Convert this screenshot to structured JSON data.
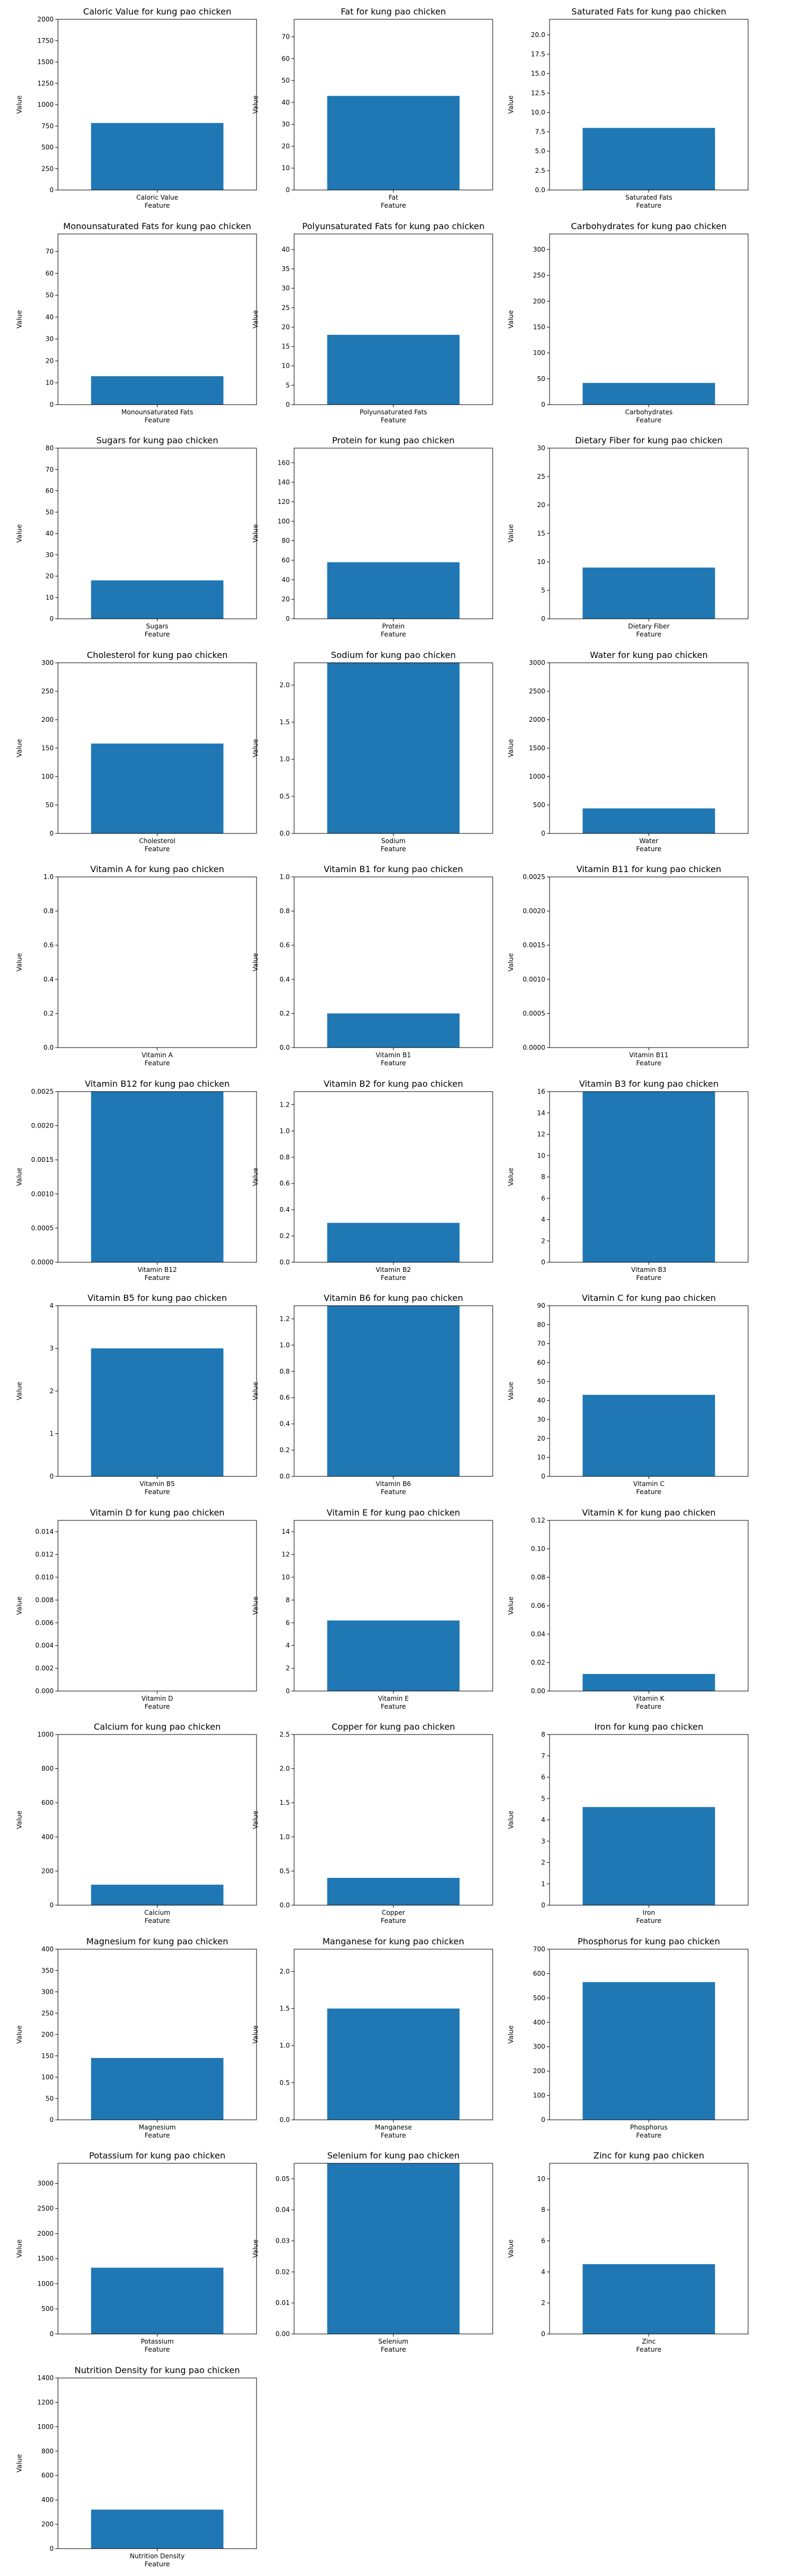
{
  "chart_data": [
    {
      "type": "bar",
      "title": "Caloric Value for kung pao chicken",
      "categories": [
        "Caloric Value"
      ],
      "values": [
        785
      ],
      "xlabel": "Feature",
      "ylabel": "Value",
      "ylim": [
        0,
        2000
      ],
      "yticks": [
        0,
        250,
        500,
        750,
        1000,
        1250,
        1500,
        1750,
        2000
      ],
      "ytick_labels": [
        "0",
        "250",
        "500",
        "750",
        "1000",
        "1250",
        "1500",
        "1750",
        "2000"
      ],
      "color": "#1f77b4"
    },
    {
      "type": "bar",
      "title": "Fat for kung pao chicken",
      "categories": [
        "Fat"
      ],
      "values": [
        43
      ],
      "xlabel": "Feature",
      "ylabel": "Value",
      "ylim": [
        0,
        78
      ],
      "yticks": [
        0,
        10,
        20,
        30,
        40,
        50,
        60,
        70
      ],
      "ytick_labels": [
        "0",
        "10",
        "20",
        "30",
        "40",
        "50",
        "60",
        "70"
      ],
      "color": "#1f77b4"
    },
    {
      "type": "bar",
      "title": "Saturated Fats for kung pao chicken",
      "categories": [
        "Saturated Fats"
      ],
      "values": [
        8
      ],
      "xlabel": "Feature",
      "ylabel": "Value",
      "ylim": [
        0,
        22
      ],
      "yticks": [
        0,
        2.5,
        5,
        7.5,
        10,
        12.5,
        15,
        17.5,
        20
      ],
      "ytick_labels": [
        "0.0",
        "2.5",
        "5.0",
        "7.5",
        "10.0",
        "12.5",
        "15.0",
        "17.5",
        "20.0"
      ],
      "color": "#1f77b4"
    },
    {
      "type": "bar",
      "title": "Monounsaturated Fats for kung pao chicken",
      "categories": [
        "Monounsaturated Fats"
      ],
      "values": [
        13
      ],
      "xlabel": "Feature",
      "ylabel": "Value",
      "ylim": [
        0,
        78
      ],
      "yticks": [
        0,
        10,
        20,
        30,
        40,
        50,
        60,
        70
      ],
      "ytick_labels": [
        "0",
        "10",
        "20",
        "30",
        "40",
        "50",
        "60",
        "70"
      ],
      "color": "#1f77b4"
    },
    {
      "type": "bar",
      "title": "Polyunsaturated Fats for kung pao chicken",
      "categories": [
        "Polyunsaturated Fats"
      ],
      "values": [
        18
      ],
      "xlabel": "Feature",
      "ylabel": "Value",
      "ylim": [
        0,
        44
      ],
      "yticks": [
        0,
        5,
        10,
        15,
        20,
        25,
        30,
        35,
        40
      ],
      "ytick_labels": [
        "0",
        "5",
        "10",
        "15",
        "20",
        "25",
        "30",
        "35",
        "40"
      ],
      "color": "#1f77b4"
    },
    {
      "type": "bar",
      "title": "Carbohydrates for kung pao chicken",
      "categories": [
        "Carbohydrates"
      ],
      "values": [
        42
      ],
      "xlabel": "Feature",
      "ylabel": "Value",
      "ylim": [
        0,
        330
      ],
      "yticks": [
        0,
        50,
        100,
        150,
        200,
        250,
        300
      ],
      "ytick_labels": [
        "0",
        "50",
        "100",
        "150",
        "200",
        "250",
        "300"
      ],
      "color": "#1f77b4"
    },
    {
      "type": "bar",
      "title": "Sugars for kung pao chicken",
      "categories": [
        "Sugars"
      ],
      "values": [
        18
      ],
      "xlabel": "Feature",
      "ylabel": "Value",
      "ylim": [
        0,
        80
      ],
      "yticks": [
        0,
        10,
        20,
        30,
        40,
        50,
        60,
        70,
        80
      ],
      "ytick_labels": [
        "0",
        "10",
        "20",
        "30",
        "40",
        "50",
        "60",
        "70",
        "80"
      ],
      "color": "#1f77b4"
    },
    {
      "type": "bar",
      "title": "Protein for kung pao chicken",
      "categories": [
        "Protein"
      ],
      "values": [
        58
      ],
      "xlabel": "Feature",
      "ylabel": "Value",
      "ylim": [
        0,
        175
      ],
      "yticks": [
        0,
        20,
        40,
        60,
        80,
        100,
        120,
        140,
        160
      ],
      "ytick_labels": [
        "0",
        "20",
        "40",
        "60",
        "80",
        "100",
        "120",
        "140",
        "160"
      ],
      "color": "#1f77b4"
    },
    {
      "type": "bar",
      "title": "Dietary Fiber for kung pao chicken",
      "categories": [
        "Dietary Fiber"
      ],
      "values": [
        9
      ],
      "xlabel": "Feature",
      "ylabel": "Value",
      "ylim": [
        0,
        30
      ],
      "yticks": [
        0,
        5,
        10,
        15,
        20,
        25,
        30
      ],
      "ytick_labels": [
        "0",
        "5",
        "10",
        "15",
        "20",
        "25",
        "30"
      ],
      "color": "#1f77b4"
    },
    {
      "type": "bar",
      "title": "Cholesterol for kung pao chicken",
      "categories": [
        "Cholesterol"
      ],
      "values": [
        158
      ],
      "xlabel": "Feature",
      "ylabel": "Value",
      "ylim": [
        0,
        300
      ],
      "yticks": [
        0,
        50,
        100,
        150,
        200,
        250,
        300
      ],
      "ytick_labels": [
        "0",
        "50",
        "100",
        "150",
        "200",
        "250",
        "300"
      ],
      "color": "#1f77b4"
    },
    {
      "type": "bar",
      "title": "Sodium for kung pao chicken",
      "categories": [
        "Sodium"
      ],
      "values": [
        2.3
      ],
      "xlabel": "Feature",
      "ylabel": "Value",
      "ylim": [
        0,
        2.3
      ],
      "yticks": [
        0,
        0.5,
        1,
        1.5,
        2
      ],
      "ytick_labels": [
        "0.0",
        "0.5",
        "1.0",
        "1.5",
        "2.0"
      ],
      "color": "#1f77b4"
    },
    {
      "type": "bar",
      "title": "Water for kung pao chicken",
      "categories": [
        "Water"
      ],
      "values": [
        440
      ],
      "xlabel": "Feature",
      "ylabel": "Value",
      "ylim": [
        0,
        3000
      ],
      "yticks": [
        0,
        500,
        1000,
        1500,
        2000,
        2500,
        3000
      ],
      "ytick_labels": [
        "0",
        "500",
        "1000",
        "1500",
        "2000",
        "2500",
        "3000"
      ],
      "color": "#1f77b4"
    },
    {
      "type": "bar",
      "title": "Vitamin A for kung pao chicken",
      "categories": [
        "Vitamin A"
      ],
      "values": [
        0
      ],
      "xlabel": "Feature",
      "ylabel": "Value",
      "ylim": [
        0,
        1
      ],
      "yticks": [
        0,
        0.2,
        0.4,
        0.6,
        0.8,
        1
      ],
      "ytick_labels": [
        "0.0",
        "0.2",
        "0.4",
        "0.6",
        "0.8",
        "1.0"
      ],
      "color": "#1f77b4"
    },
    {
      "type": "bar",
      "title": "Vitamin B1 for kung pao chicken",
      "categories": [
        "Vitamin B1"
      ],
      "values": [
        0.2
      ],
      "xlabel": "Feature",
      "ylabel": "Value",
      "ylim": [
        0,
        1
      ],
      "yticks": [
        0,
        0.2,
        0.4,
        0.6,
        0.8,
        1
      ],
      "ytick_labels": [
        "0.0",
        "0.2",
        "0.4",
        "0.6",
        "0.8",
        "1.0"
      ],
      "color": "#1f77b4"
    },
    {
      "type": "bar",
      "title": "Vitamin B11 for kung pao chicken",
      "categories": [
        "Vitamin B11"
      ],
      "values": [
        0
      ],
      "xlabel": "Feature",
      "ylabel": "Value",
      "ylim": [
        0,
        0.0025
      ],
      "yticks": [
        0,
        0.0005,
        0.001,
        0.0015,
        0.002,
        0.0025
      ],
      "ytick_labels": [
        "0.0000",
        "0.0005",
        "0.0010",
        "0.0015",
        "0.0020",
        "0.0025"
      ],
      "color": "#1f77b4"
    },
    {
      "type": "bar",
      "title": "Vitamin B12 for kung pao chicken",
      "categories": [
        "Vitamin B12"
      ],
      "values": [
        0.0025
      ],
      "xlabel": "Feature",
      "ylabel": "Value",
      "ylim": [
        0,
        0.0025
      ],
      "yticks": [
        0,
        0.0005,
        0.001,
        0.0015,
        0.002,
        0.0025
      ],
      "ytick_labels": [
        "0.0000",
        "0.0005",
        "0.0010",
        "0.0015",
        "0.0020",
        "0.0025"
      ],
      "color": "#1f77b4"
    },
    {
      "type": "bar",
      "title": "Vitamin B2 for kung pao chicken",
      "categories": [
        "Vitamin B2"
      ],
      "values": [
        0.3
      ],
      "xlabel": "Feature",
      "ylabel": "Value",
      "ylim": [
        0,
        1.3
      ],
      "yticks": [
        0,
        0.2,
        0.4,
        0.6,
        0.8,
        1,
        1.2
      ],
      "ytick_labels": [
        "0.0",
        "0.2",
        "0.4",
        "0.6",
        "0.8",
        "1.0",
        "1.2"
      ],
      "color": "#1f77b4"
    },
    {
      "type": "bar",
      "title": "Vitamin B3 for kung pao chicken",
      "categories": [
        "Vitamin B3"
      ],
      "values": [
        16
      ],
      "xlabel": "Feature",
      "ylabel": "Value",
      "ylim": [
        0,
        16
      ],
      "yticks": [
        0,
        2,
        4,
        6,
        8,
        10,
        12,
        14,
        16
      ],
      "ytick_labels": [
        "0",
        "2",
        "4",
        "6",
        "8",
        "10",
        "12",
        "14",
        "16"
      ],
      "color": "#1f77b4"
    },
    {
      "type": "bar",
      "title": "Vitamin B5 for kung pao chicken",
      "categories": [
        "Vitamin B5"
      ],
      "values": [
        3
      ],
      "xlabel": "Feature",
      "ylabel": "Value",
      "ylim": [
        0,
        4
      ],
      "yticks": [
        0,
        1,
        2,
        3,
        4
      ],
      "ytick_labels": [
        "0",
        "1",
        "2",
        "3",
        "4"
      ],
      "color": "#1f77b4"
    },
    {
      "type": "bar",
      "title": "Vitamin B6 for kung pao chicken",
      "categories": [
        "Vitamin B6"
      ],
      "values": [
        1.3
      ],
      "xlabel": "Feature",
      "ylabel": "Value",
      "ylim": [
        0,
        1.3
      ],
      "yticks": [
        0,
        0.2,
        0.4,
        0.6,
        0.8,
        1,
        1.2
      ],
      "ytick_labels": [
        "0.0",
        "0.2",
        "0.4",
        "0.6",
        "0.8",
        "1.0",
        "1.2"
      ],
      "color": "#1f77b4"
    },
    {
      "type": "bar",
      "title": "Vitamin C for kung pao chicken",
      "categories": [
        "Vitamin C"
      ],
      "values": [
        43
      ],
      "xlabel": "Feature",
      "ylabel": "Value",
      "ylim": [
        0,
        90
      ],
      "yticks": [
        0,
        10,
        20,
        30,
        40,
        50,
        60,
        70,
        80,
        90
      ],
      "ytick_labels": [
        "0",
        "10",
        "20",
        "30",
        "40",
        "50",
        "60",
        "70",
        "80",
        "90"
      ],
      "color": "#1f77b4"
    },
    {
      "type": "bar",
      "title": "Vitamin D for kung pao chicken",
      "categories": [
        "Vitamin D"
      ],
      "values": [
        0
      ],
      "xlabel": "Feature",
      "ylabel": "Value",
      "ylim": [
        0,
        0.015
      ],
      "yticks": [
        0,
        0.002,
        0.004,
        0.006,
        0.008,
        0.01,
        0.012,
        0.014
      ],
      "ytick_labels": [
        "0.000",
        "0.002",
        "0.004",
        "0.006",
        "0.008",
        "0.010",
        "0.012",
        "0.014"
      ],
      "color": "#1f77b4"
    },
    {
      "type": "bar",
      "title": "Vitamin E for kung pao chicken",
      "categories": [
        "Vitamin E"
      ],
      "values": [
        6.2
      ],
      "xlabel": "Feature",
      "ylabel": "Value",
      "ylim": [
        0,
        15
      ],
      "yticks": [
        0,
        2,
        4,
        6,
        8,
        10,
        12,
        14
      ],
      "ytick_labels": [
        "0",
        "2",
        "4",
        "6",
        "8",
        "10",
        "12",
        "14"
      ],
      "color": "#1f77b4"
    },
    {
      "type": "bar",
      "title": "Vitamin K for kung pao chicken",
      "categories": [
        "Vitamin K"
      ],
      "values": [
        0.012
      ],
      "xlabel": "Feature",
      "ylabel": "Value",
      "ylim": [
        0,
        0.12
      ],
      "yticks": [
        0,
        0.02,
        0.04,
        0.06,
        0.08,
        0.1,
        0.12
      ],
      "ytick_labels": [
        "0.00",
        "0.02",
        "0.04",
        "0.06",
        "0.08",
        "0.10",
        "0.12"
      ],
      "color": "#1f77b4"
    },
    {
      "type": "bar",
      "title": "Calcium for kung pao chicken",
      "categories": [
        "Calcium"
      ],
      "values": [
        120
      ],
      "xlabel": "Feature",
      "ylabel": "Value",
      "ylim": [
        0,
        1000
      ],
      "yticks": [
        0,
        200,
        400,
        600,
        800,
        1000
      ],
      "ytick_labels": [
        "0",
        "200",
        "400",
        "600",
        "800",
        "1000"
      ],
      "color": "#1f77b4"
    },
    {
      "type": "bar",
      "title": "Copper for kung pao chicken",
      "categories": [
        "Copper"
      ],
      "values": [
        0.4
      ],
      "xlabel": "Feature",
      "ylabel": "Value",
      "ylim": [
        0,
        2.5
      ],
      "yticks": [
        0,
        0.5,
        1,
        1.5,
        2,
        2.5
      ],
      "ytick_labels": [
        "0.0",
        "0.5",
        "1.0",
        "1.5",
        "2.0",
        "2.5"
      ],
      "color": "#1f77b4"
    },
    {
      "type": "bar",
      "title": "Iron for kung pao chicken",
      "categories": [
        "Iron"
      ],
      "values": [
        4.6
      ],
      "xlabel": "Feature",
      "ylabel": "Value",
      "ylim": [
        0,
        8
      ],
      "yticks": [
        0,
        1,
        2,
        3,
        4,
        5,
        6,
        7,
        8
      ],
      "ytick_labels": [
        "0",
        "1",
        "2",
        "3",
        "4",
        "5",
        "6",
        "7",
        "8"
      ],
      "color": "#1f77b4"
    },
    {
      "type": "bar",
      "title": "Magnesium for kung pao chicken",
      "categories": [
        "Magnesium"
      ],
      "values": [
        145
      ],
      "xlabel": "Feature",
      "ylabel": "Value",
      "ylim": [
        0,
        400
      ],
      "yticks": [
        0,
        50,
        100,
        150,
        200,
        250,
        300,
        350,
        400
      ],
      "ytick_labels": [
        "0",
        "50",
        "100",
        "150",
        "200",
        "250",
        "300",
        "350",
        "400"
      ],
      "color": "#1f77b4"
    },
    {
      "type": "bar",
      "title": "Manganese for kung pao chicken",
      "categories": [
        "Manganese"
      ],
      "values": [
        1.5
      ],
      "xlabel": "Feature",
      "ylabel": "Value",
      "ylim": [
        0,
        2.3
      ],
      "yticks": [
        0,
        0.5,
        1,
        1.5,
        2
      ],
      "ytick_labels": [
        "0.0",
        "0.5",
        "1.0",
        "1.5",
        "2.0"
      ],
      "color": "#1f77b4"
    },
    {
      "type": "bar",
      "title": "Phosphorus for kung pao chicken",
      "categories": [
        "Phosphorus"
      ],
      "values": [
        565
      ],
      "xlabel": "Feature",
      "ylabel": "Value",
      "ylim": [
        0,
        700
      ],
      "yticks": [
        0,
        100,
        200,
        300,
        400,
        500,
        600,
        700
      ],
      "ytick_labels": [
        "0",
        "100",
        "200",
        "300",
        "400",
        "500",
        "600",
        "700"
      ],
      "color": "#1f77b4"
    },
    {
      "type": "bar",
      "title": "Potassium for kung pao chicken",
      "categories": [
        "Potassium"
      ],
      "values": [
        1320
      ],
      "xlabel": "Feature",
      "ylabel": "Value",
      "ylim": [
        0,
        3400
      ],
      "yticks": [
        0,
        500,
        1000,
        1500,
        2000,
        2500,
        3000
      ],
      "ytick_labels": [
        "0",
        "500",
        "1000",
        "1500",
        "2000",
        "2500",
        "3000"
      ],
      "color": "#1f77b4"
    },
    {
      "type": "bar",
      "title": "Selenium for kung pao chicken",
      "categories": [
        "Selenium"
      ],
      "values": [
        0.055
      ],
      "xlabel": "Feature",
      "ylabel": "Value",
      "ylim": [
        0,
        0.055
      ],
      "yticks": [
        0,
        0.01,
        0.02,
        0.03,
        0.04,
        0.05
      ],
      "ytick_labels": [
        "0.00",
        "0.01",
        "0.02",
        "0.03",
        "0.04",
        "0.05"
      ],
      "color": "#1f77b4"
    },
    {
      "type": "bar",
      "title": "Zinc for kung pao chicken",
      "categories": [
        "Zinc"
      ],
      "values": [
        4.5
      ],
      "xlabel": "Feature",
      "ylabel": "Value",
      "ylim": [
        0,
        11
      ],
      "yticks": [
        0,
        2,
        4,
        6,
        8,
        10
      ],
      "ytick_labels": [
        "0",
        "2",
        "4",
        "6",
        "8",
        "10"
      ],
      "color": "#1f77b4"
    },
    {
      "type": "bar",
      "title": "Nutrition Density for kung pao chicken",
      "categories": [
        "Nutrition Density"
      ],
      "values": [
        320
      ],
      "xlabel": "Feature",
      "ylabel": "Value",
      "ylim": [
        0,
        1400
      ],
      "yticks": [
        0,
        200,
        400,
        600,
        800,
        1000,
        1200,
        1400
      ],
      "ytick_labels": [
        "0",
        "200",
        "400",
        "600",
        "800",
        "1000",
        "1200",
        "1400"
      ],
      "color": "#1f77b4"
    }
  ]
}
